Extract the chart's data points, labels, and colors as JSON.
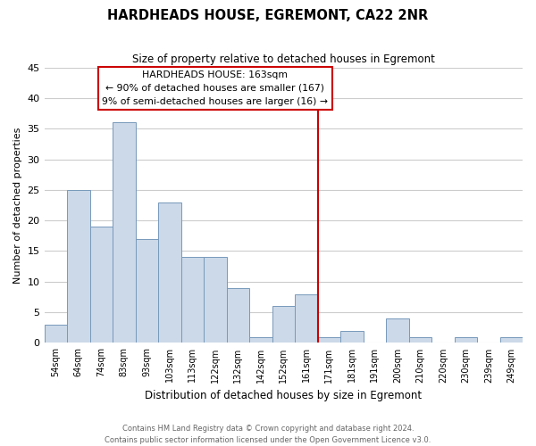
{
  "title": "HARDHEADS HOUSE, EGREMONT, CA22 2NR",
  "subtitle": "Size of property relative to detached houses in Egremont",
  "xlabel": "Distribution of detached houses by size in Egremont",
  "ylabel": "Number of detached properties",
  "bar_labels": [
    "54sqm",
    "64sqm",
    "74sqm",
    "83sqm",
    "93sqm",
    "103sqm",
    "113sqm",
    "122sqm",
    "132sqm",
    "142sqm",
    "152sqm",
    "161sqm",
    "171sqm",
    "181sqm",
    "191sqm",
    "200sqm",
    "210sqm",
    "220sqm",
    "230sqm",
    "239sqm",
    "249sqm"
  ],
  "bar_values": [
    3,
    25,
    19,
    36,
    17,
    23,
    14,
    14,
    9,
    1,
    6,
    8,
    1,
    2,
    0,
    4,
    1,
    0,
    1,
    0,
    1
  ],
  "bar_color": "#ccd9e8",
  "bar_edgecolor": "#7799bb",
  "vline_index": 11,
  "vline_color": "#cc0000",
  "annotation_title": "HARDHEADS HOUSE: 163sqm",
  "annotation_line1": "← 90% of detached houses are smaller (167)",
  "annotation_line2": "9% of semi-detached houses are larger (16) →",
  "annotation_box_color": "#ffffff",
  "annotation_box_edgecolor": "#cc0000",
  "ylim": [
    0,
    45
  ],
  "yticks": [
    0,
    5,
    10,
    15,
    20,
    25,
    30,
    35,
    40,
    45
  ],
  "footer_line1": "Contains HM Land Registry data © Crown copyright and database right 2024.",
  "footer_line2": "Contains public sector information licensed under the Open Government Licence v3.0.",
  "background_color": "#ffffff",
  "grid_color": "#cccccc"
}
